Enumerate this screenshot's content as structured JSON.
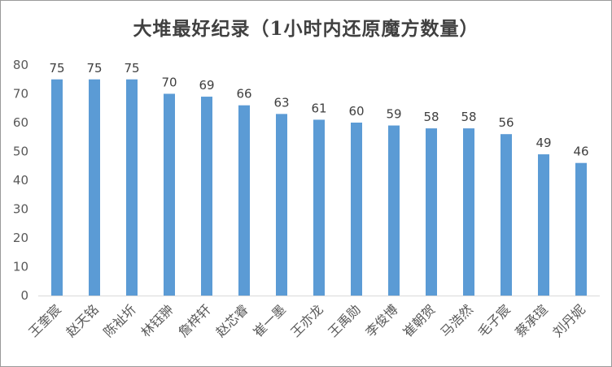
{
  "chart_data": {
    "type": "bar",
    "title": "大堆最好纪录（1小时内还原魔方数量）",
    "categories": [
      "王奎宸",
      "赵天铭",
      "陈祉圻",
      "林钰翀",
      "詹梓轩",
      "赵芯睿",
      "崔一墨",
      "王亦龙",
      "王禹勋",
      "李俊博",
      "崔朝贺",
      "马浩然",
      "毛子宸",
      "蔡承瑄",
      "刘丹妮"
    ],
    "values": [
      75,
      75,
      75,
      70,
      69,
      66,
      63,
      61,
      60,
      59,
      58,
      58,
      56,
      49,
      46
    ],
    "ylim": [
      0,
      80
    ],
    "yticks": [
      0,
      10,
      20,
      30,
      40,
      50,
      60,
      70,
      80
    ],
    "xlabel": "",
    "ylabel": "",
    "grid": false,
    "bar_color": "#5b9bd5"
  }
}
